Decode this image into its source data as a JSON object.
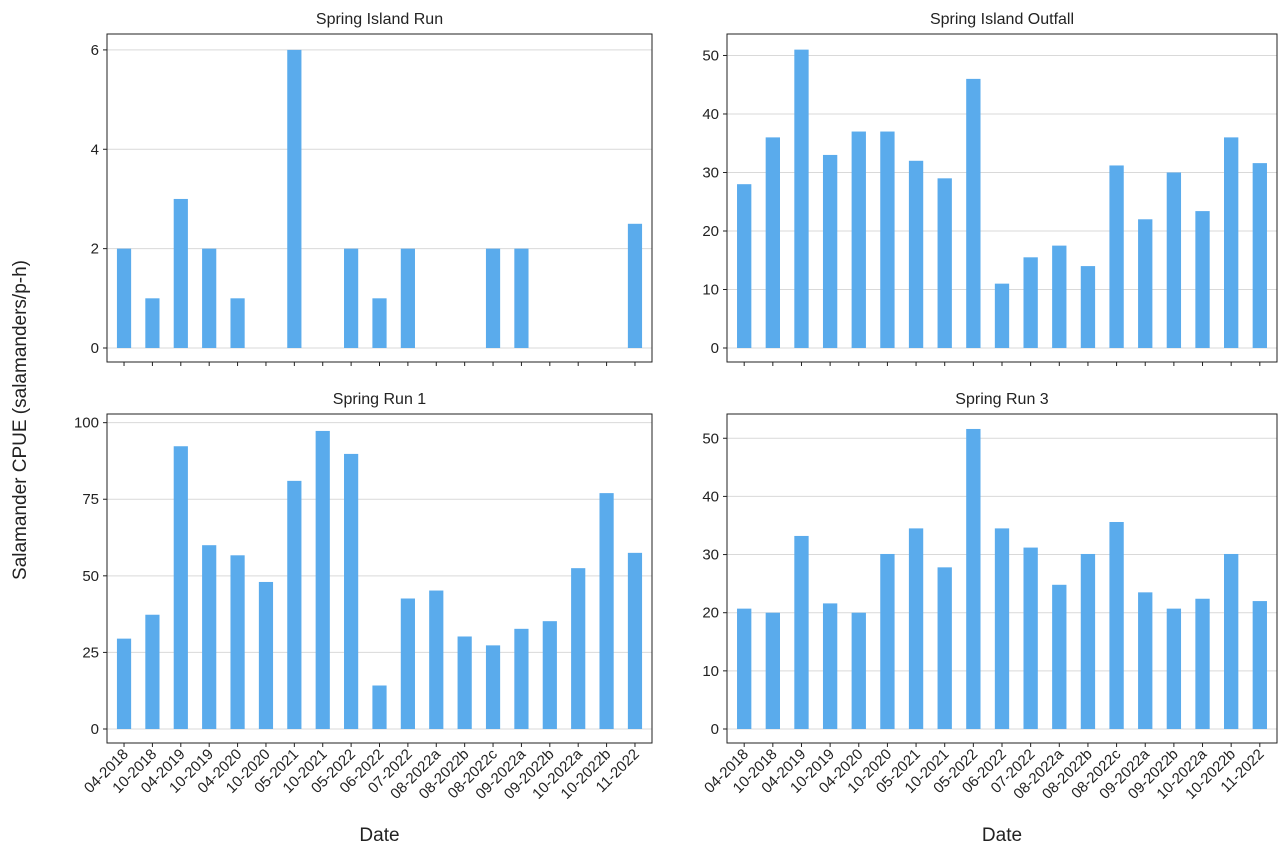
{
  "figure": {
    "shared_ylabel": "Salamander CPUE (salamanders/p-h)",
    "shared_xlabel": "Date"
  },
  "colors": {
    "bar": "#5aabec",
    "grid": "#d9d9d9",
    "frame": "#222222"
  },
  "chart_data": [
    {
      "type": "bar",
      "title": "Spring Island Run",
      "categories": [
        "04-2018",
        "10-2018",
        "04-2019",
        "10-2019",
        "04-2020",
        "10-2020",
        "05-2021",
        "10-2021",
        "05-2022",
        "06-2022",
        "07-2022",
        "08-2022a",
        "08-2022b",
        "08-2022c",
        "09-2022a",
        "09-2022b",
        "10-2022a",
        "10-2022b",
        "11-2022"
      ],
      "values": [
        2,
        1,
        3,
        2,
        1,
        0,
        6,
        0,
        2,
        1,
        2,
        0,
        0,
        2,
        2,
        0,
        0,
        0,
        2.5
      ],
      "ylim": [
        0,
        6.3
      ],
      "yticks": [
        0,
        2,
        4,
        6
      ],
      "grid": "horizontal",
      "xlabel": "",
      "ylabel": ""
    },
    {
      "type": "bar",
      "title": "Spring Island Outfall",
      "categories": [
        "04-2018",
        "10-2018",
        "04-2019",
        "10-2019",
        "04-2020",
        "10-2020",
        "05-2021",
        "10-2021",
        "05-2022",
        "06-2022",
        "07-2022",
        "08-2022a",
        "08-2022b",
        "08-2022c",
        "09-2022a",
        "09-2022b",
        "10-2022a",
        "10-2022b",
        "11-2022"
      ],
      "values": [
        28,
        36,
        51,
        33,
        37,
        37,
        32,
        29,
        46,
        11,
        15.5,
        17.5,
        14,
        31.2,
        22,
        30,
        23.4,
        36,
        31.6
      ],
      "ylim": [
        0,
        53.5
      ],
      "yticks": [
        0,
        10,
        20,
        30,
        40,
        50
      ],
      "grid": "horizontal",
      "xlabel": "",
      "ylabel": ""
    },
    {
      "type": "bar",
      "title": "Spring Run 1",
      "categories": [
        "04-2018",
        "10-2018",
        "04-2019",
        "10-2019",
        "04-2020",
        "10-2020",
        "05-2021",
        "10-2021",
        "05-2022",
        "06-2022",
        "07-2022",
        "08-2022a",
        "08-2022b",
        "08-2022c",
        "09-2022a",
        "09-2022b",
        "10-2022a",
        "10-2022b",
        "11-2022"
      ],
      "values": [
        29.5,
        37.3,
        92.3,
        60,
        56.7,
        48,
        81,
        97.3,
        89.8,
        14.2,
        42.6,
        45.2,
        30.2,
        27.3,
        32.7,
        35.2,
        52.5,
        77,
        57.5
      ],
      "ylim": [
        0,
        102.5
      ],
      "yticks": [
        0,
        25,
        50,
        75,
        100
      ],
      "grid": "horizontal",
      "xlabel": "Date",
      "ylabel": ""
    },
    {
      "type": "bar",
      "title": "Spring Run 3",
      "categories": [
        "04-2018",
        "10-2018",
        "04-2019",
        "10-2019",
        "04-2020",
        "10-2020",
        "05-2021",
        "10-2021",
        "05-2022",
        "06-2022",
        "07-2022",
        "08-2022a",
        "08-2022b",
        "08-2022c",
        "09-2022a",
        "09-2022b",
        "10-2022a",
        "10-2022b",
        "11-2022"
      ],
      "values": [
        20.7,
        20,
        33.2,
        21.6,
        20,
        30.1,
        34.5,
        27.8,
        51.6,
        34.5,
        31.2,
        24.8,
        30.1,
        35.6,
        23.5,
        20.7,
        22.4,
        30.1,
        22
      ],
      "ylim": [
        0,
        54
      ],
      "yticks": [
        0,
        10,
        20,
        30,
        40,
        50
      ],
      "grid": "horizontal",
      "xlabel": "Date",
      "ylabel": ""
    }
  ]
}
